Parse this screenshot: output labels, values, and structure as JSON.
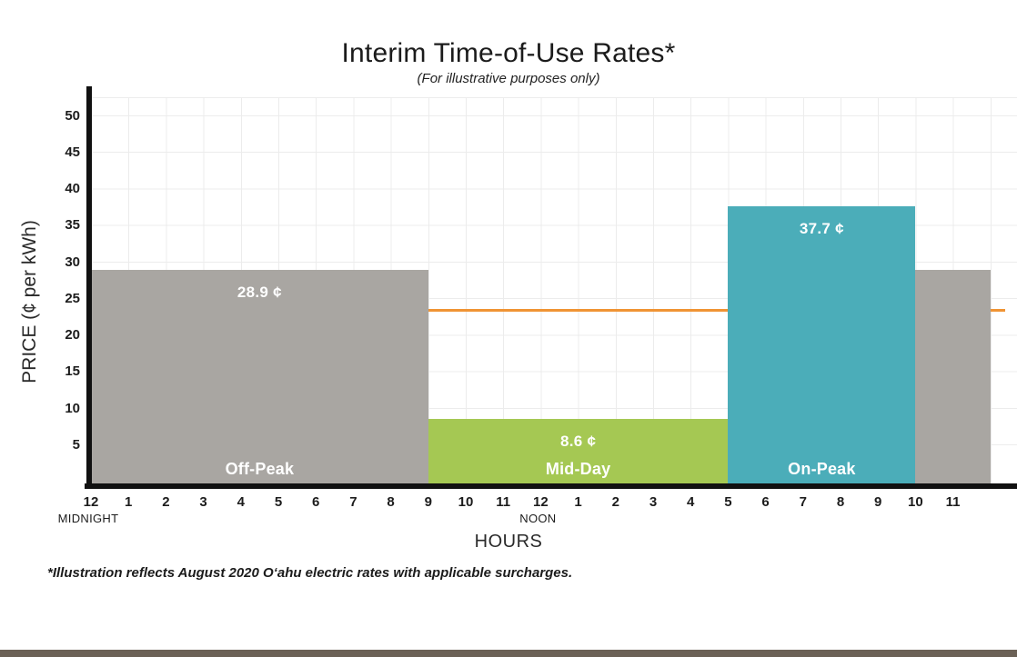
{
  "page": {
    "background_color": "#ffffff",
    "footer_bar_color": "#6b6156"
  },
  "chart_data": {
    "type": "bar",
    "title": "Interim Time-of-Use Rates*",
    "subtitle": "(For illustrative purposes only)",
    "ylabel": "PRICE (¢ per kWh)",
    "xlabel": "HOURS",
    "ylim": [
      0,
      52.5
    ],
    "yticks": [
      5,
      10,
      15,
      20,
      25,
      30,
      35,
      40,
      45,
      50
    ],
    "x_hour_labels": [
      "12",
      "1",
      "2",
      "3",
      "4",
      "5",
      "6",
      "7",
      "8",
      "9",
      "10",
      "11",
      "12",
      "1",
      "2",
      "3",
      "4",
      "5",
      "6",
      "7",
      "8",
      "9",
      "10",
      "11"
    ],
    "x_annotations": [
      {
        "label": "MIDNIGHT",
        "hour": 0
      },
      {
        "label": "NOON",
        "hour": 12
      }
    ],
    "grid": true,
    "segments": [
      {
        "label": "Off-Peak",
        "value": 28.9,
        "value_label": "28.9 ¢",
        "start_hour": 0,
        "end_hour": 9,
        "color": "#a9a6a2",
        "show_labels": true
      },
      {
        "label": "Mid-Day",
        "value": 8.6,
        "value_label": "8.6 ¢",
        "start_hour": 9,
        "end_hour": 17,
        "color": "#a5c853",
        "show_labels": true
      },
      {
        "label": "On-Peak",
        "value": 37.7,
        "value_label": "37.7 ¢",
        "start_hour": 17,
        "end_hour": 22,
        "color": "#4badb9",
        "show_labels": true
      },
      {
        "label": "Off-Peak",
        "value": 28.9,
        "value_label": "",
        "start_hour": 22,
        "end_hour": 24,
        "color": "#a9a6a2",
        "show_labels": false
      }
    ],
    "reference_line": {
      "value": 23.4,
      "color": "#f09434"
    },
    "footnote": "*Illustration reflects August 2020 O‘ahu electric rates with applicable surcharges."
  }
}
